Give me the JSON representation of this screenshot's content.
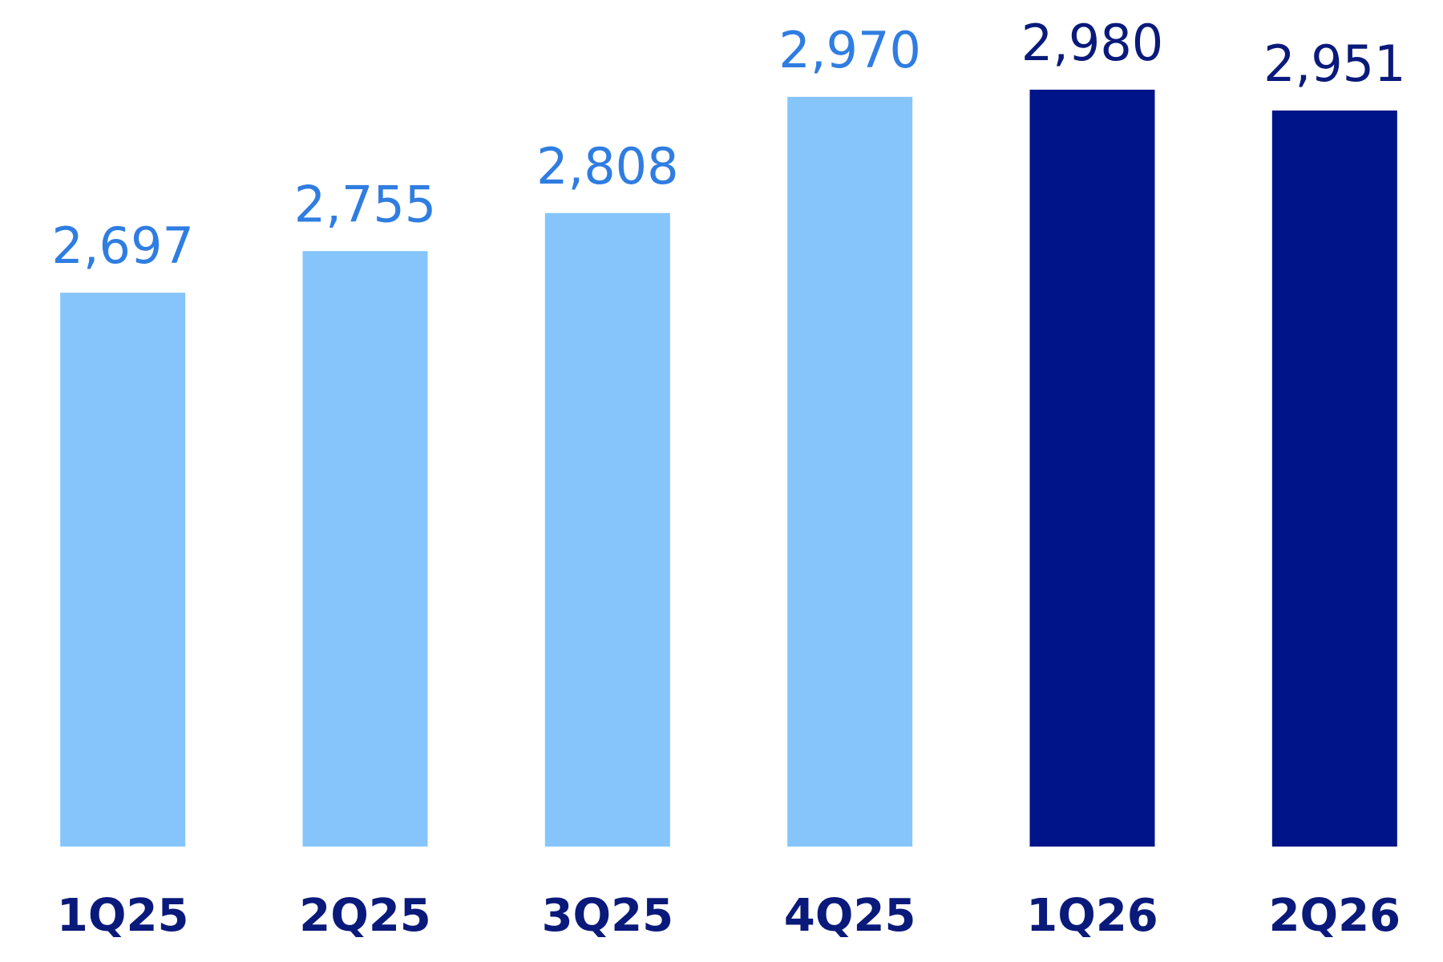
{
  "chart_data": {
    "type": "bar",
    "categories": [
      "1Q25",
      "2Q25",
      "3Q25",
      "4Q25",
      "1Q26",
      "2Q26"
    ],
    "values": [
      2697,
      2755,
      2808,
      2970,
      2980,
      2951
    ],
    "value_labels": [
      "2,697",
      "2,755",
      "2,808",
      "2,970",
      "2,980",
      "2,951"
    ],
    "colors": [
      "#85c5fc",
      "#85c5fc",
      "#85c5fc",
      "#85c5fc",
      "#001489",
      "#001489"
    ],
    "label_colors": [
      "#2f7de1",
      "#2f7de1",
      "#2f7de1",
      "#2f7de1",
      "#0a1a7a",
      "#0a1a7a"
    ],
    "category_color": "#0a1a7a",
    "ylim": [
      1925,
      3105
    ]
  }
}
